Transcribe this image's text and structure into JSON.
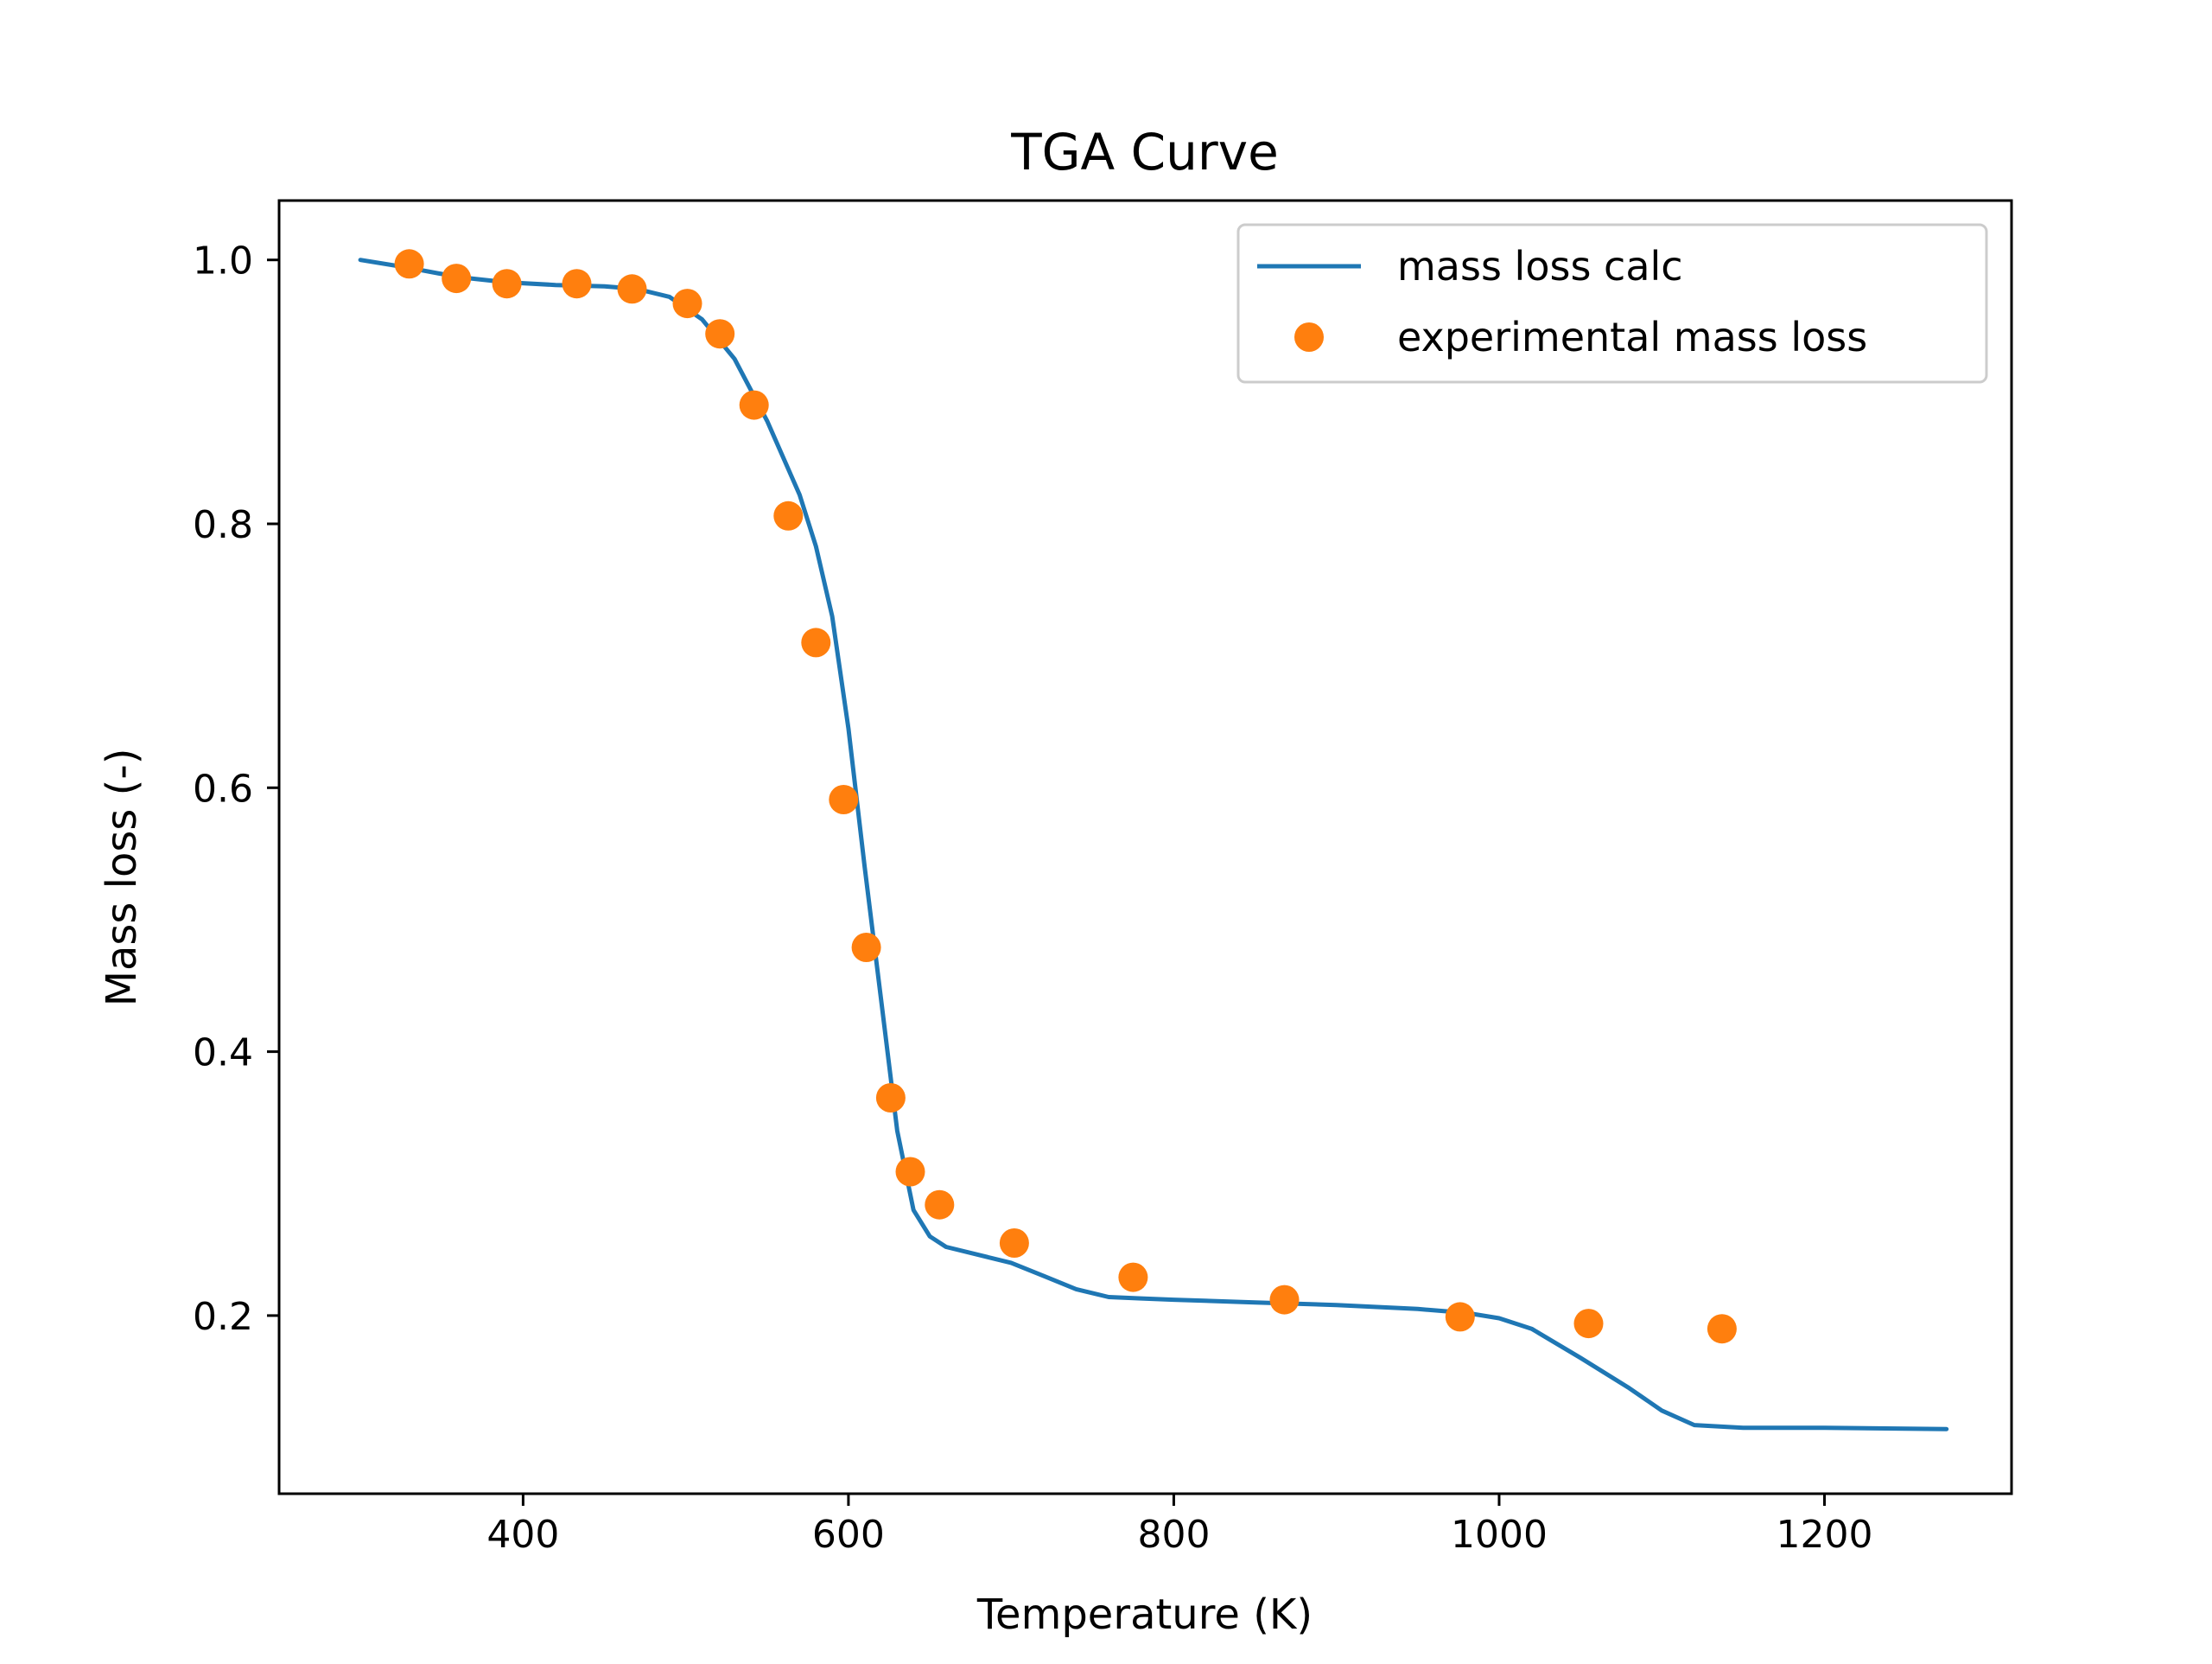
{
  "chart_data": {
    "type": "line",
    "title": "TGA Curve",
    "xlabel": "Temperature (K)",
    "ylabel": "Mass loss (-)",
    "xlim": [
      250,
      1315
    ],
    "ylim": [
      0.065,
      1.045
    ],
    "xticks": [
      400,
      600,
      800,
      1000,
      1200
    ],
    "yticks": [
      0.2,
      0.4,
      0.6,
      0.8,
      1.0
    ],
    "xtick_labels": [
      "400",
      "600",
      "800",
      "1000",
      "1200"
    ],
    "ytick_labels": [
      "0.2",
      "0.4",
      "0.6",
      "0.8",
      "1.0"
    ],
    "grid": false,
    "legend_position": "top-right",
    "series": [
      {
        "name": "mass loss calc",
        "kind": "line",
        "color": "#1f77b4",
        "x": [
          300,
          330,
          360,
          390,
          420,
          450,
          470,
          490,
          510,
          530,
          550,
          570,
          580,
          590,
          600,
          610,
          620,
          630,
          640,
          650,
          660,
          680,
          700,
          720,
          740,
          760,
          780,
          800,
          850,
          900,
          950,
          980,
          1000,
          1020,
          1050,
          1080,
          1100,
          1120,
          1150,
          1200,
          1275
        ],
        "y": [
          1.0,
          0.994,
          0.987,
          0.983,
          0.981,
          0.98,
          0.978,
          0.972,
          0.955,
          0.925,
          0.878,
          0.822,
          0.783,
          0.73,
          0.645,
          0.54,
          0.44,
          0.34,
          0.28,
          0.26,
          0.252,
          0.246,
          0.24,
          0.23,
          0.22,
          0.214,
          0.213,
          0.212,
          0.21,
          0.208,
          0.205,
          0.202,
          0.198,
          0.19,
          0.168,
          0.145,
          0.128,
          0.117,
          0.115,
          0.115,
          0.114
        ]
      },
      {
        "name": "experimental mass loss",
        "kind": "scatter",
        "color": "#ff7f0e",
        "x": [
          330,
          359,
          390,
          433,
          467,
          501,
          521,
          542,
          563,
          580,
          597,
          611,
          626,
          638,
          656,
          702,
          775,
          868,
          976,
          1055,
          1137
        ],
        "y": [
          0.997,
          0.986,
          0.982,
          0.982,
          0.978,
          0.967,
          0.944,
          0.89,
          0.806,
          0.71,
          0.591,
          0.479,
          0.365,
          0.309,
          0.284,
          0.255,
          0.229,
          0.212,
          0.199,
          0.194,
          0.19
        ]
      }
    ]
  }
}
